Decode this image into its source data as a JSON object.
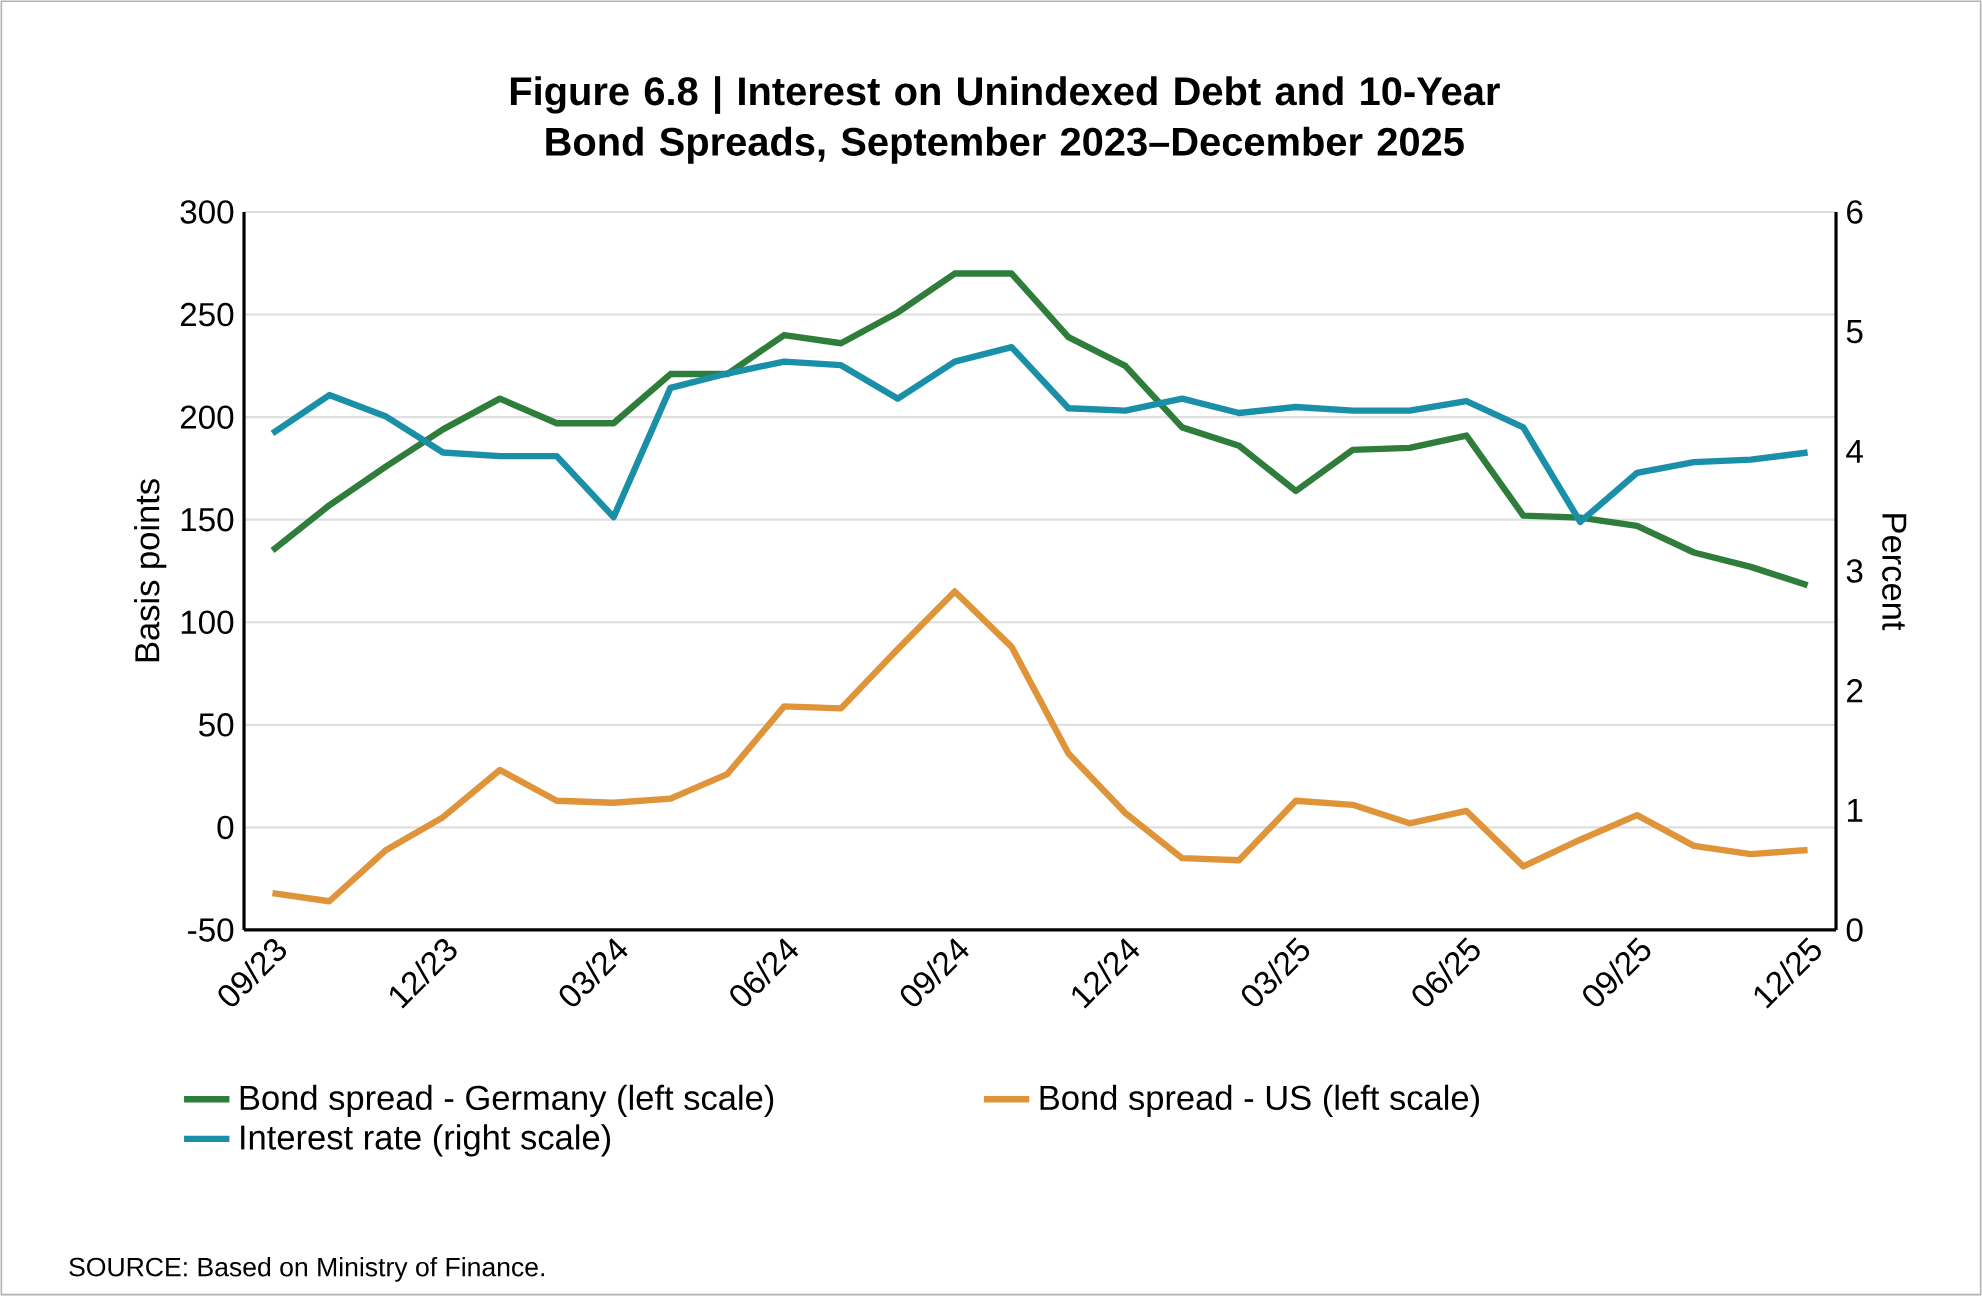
{
  "chart_data": {
    "type": "line",
    "title": "Figure 6.8 | Interest on Unindexed Debt and 10-Year Bond Spreads, September 2023–December 2025",
    "categories": [
      "09/23",
      null,
      null,
      "12/23",
      null,
      null,
      "03/24",
      null,
      null,
      "06/24",
      null,
      null,
      "09/24",
      null,
      null,
      "12/24",
      null,
      null,
      "03/25",
      null,
      null,
      "06/25",
      null,
      null,
      "09/25",
      null,
      null,
      "12/25"
    ],
    "series": [
      {
        "name": "Bond spread - Germany (left scale)",
        "color": "#2e7d3a",
        "values": [
          135,
          157,
          176,
          194,
          209,
          197,
          197,
          221,
          221,
          240,
          236,
          251,
          270,
          270,
          239,
          225,
          195,
          186,
          164,
          184,
          185,
          191,
          152,
          151,
          147,
          134,
          127,
          118
        ]
      },
      {
        "name": "Bond spread - US (left scale)",
        "color": "#e0943a",
        "values": [
          -32,
          -36,
          -11,
          5,
          28,
          13,
          12,
          14,
          26,
          59,
          58,
          87,
          115,
          88,
          36,
          7,
          -15,
          -16,
          13,
          11,
          2,
          8,
          -19,
          -6,
          6,
          -9,
          -13,
          -11
        ]
      },
      {
        "name": "Interest rate (right scale)",
        "color": "#1a8fa8",
        "axis": "y2",
        "values": [
          4.15,
          4.47,
          4.29,
          3.99,
          3.96,
          3.96,
          3.45,
          4.53,
          4.65,
          4.75,
          4.72,
          4.44,
          4.75,
          4.87,
          4.36,
          4.34,
          4.44,
          4.32,
          4.37,
          4.34,
          4.34,
          4.42,
          4.2,
          3.41,
          3.82,
          3.91,
          3.93,
          3.99
        ]
      }
    ],
    "ylabel": "Basis points",
    "y2label": "Percent",
    "ylim": [
      -50,
      300
    ],
    "yticks": [
      -50,
      0,
      50,
      100,
      150,
      200,
      250,
      300
    ],
    "y2lim": [
      0,
      6
    ],
    "y2ticks": [
      0,
      1,
      2,
      3,
      4,
      5,
      6
    ],
    "grid": "y",
    "legend": "bottom",
    "marker": "none",
    "line_style": "solid",
    "annotations": [
      "SOURCE: Based on Ministry of Finance."
    ]
  }
}
